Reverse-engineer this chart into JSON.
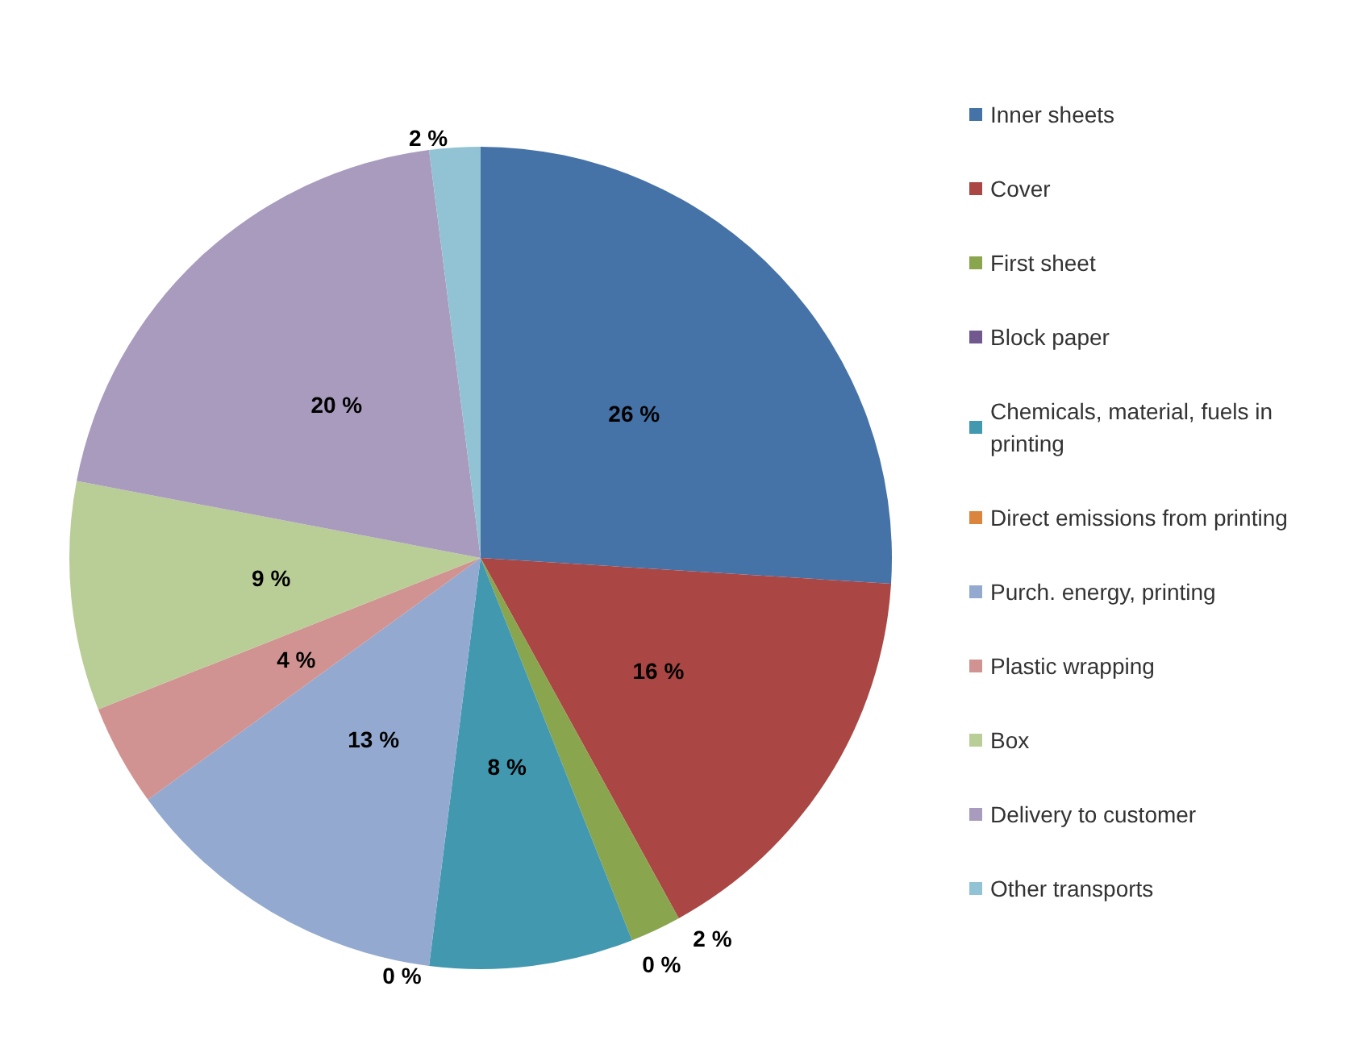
{
  "chart_data": {
    "type": "pie",
    "categories": [
      "Inner sheets",
      "Cover",
      "First sheet",
      "Block paper",
      "Chemicals, material, fuels in printing",
      "Direct emissions from printing",
      "Purch. energy, printing",
      "Plastic wrapping",
      "Box",
      "Delivery to customer",
      "Other transports"
    ],
    "values": [
      26,
      16,
      2,
      0,
      8,
      0,
      13,
      4,
      9,
      20,
      2
    ],
    "value_labels": [
      "26 %",
      "16 %",
      "2 %",
      "0 %",
      "8 %",
      "0 %",
      "13 %",
      "4 %",
      "9 %",
      "20 %",
      "2 %"
    ],
    "colors": [
      "#4572a7",
      "#aa4643",
      "#89a54e",
      "#71588f",
      "#4198af",
      "#db843d",
      "#93a9cf",
      "#d19392",
      "#b9cd96",
      "#a99bbd",
      "#92c3d4"
    ],
    "legend": "right"
  }
}
